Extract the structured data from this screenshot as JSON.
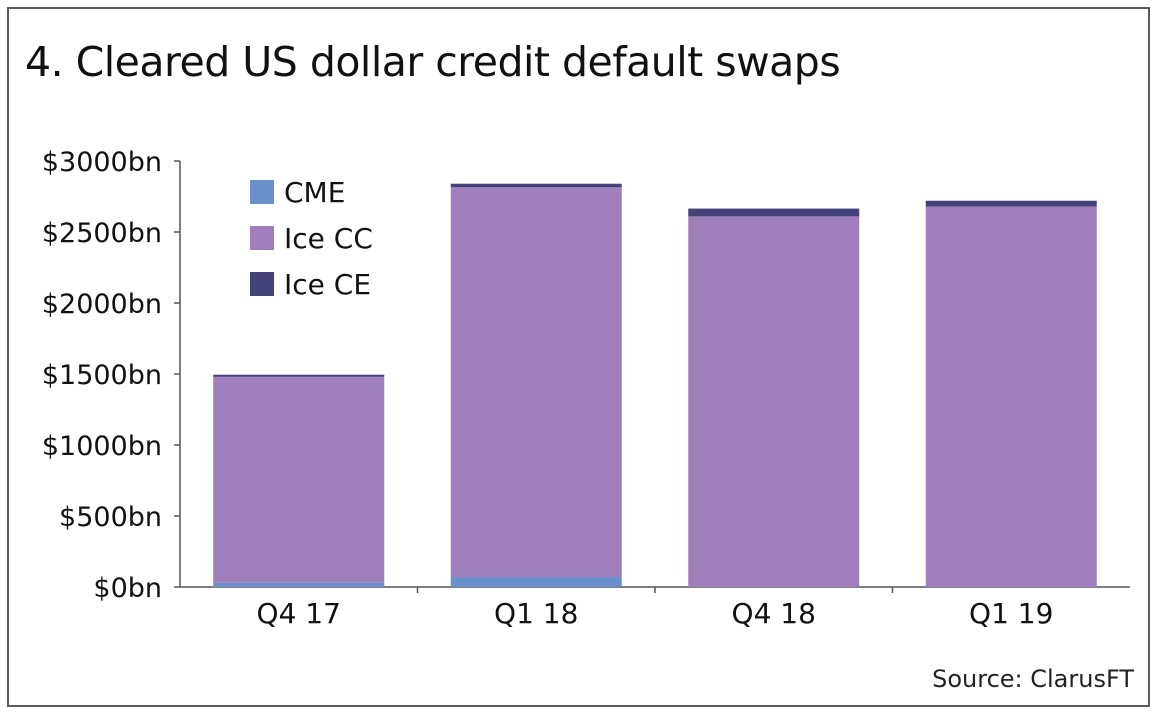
{
  "title": "4. Cleared US dollar credit default swaps",
  "source": "Source: ClarusFT",
  "chart_data": {
    "type": "bar",
    "stacked": true,
    "title": "4. Cleared US dollar credit default swaps",
    "xlabel": "",
    "ylabel": "",
    "categories": [
      "Q4 17",
      "Q1 18",
      "Q4 18",
      "Q1 19"
    ],
    "series": [
      {
        "name": "CME",
        "color": "#6b8fcc",
        "values": [
          30,
          70,
          0,
          0
        ]
      },
      {
        "name": "Ice CC",
        "color": "#9e7fbb",
        "values": [
          1450,
          2745,
          2610,
          2680
        ]
      },
      {
        "name": "Ice CE",
        "color": "#434379",
        "values": [
          15,
          25,
          55,
          40
        ]
      }
    ],
    "ylim": [
      0,
      3000
    ],
    "yticks": [
      0,
      500,
      1000,
      1500,
      2000,
      2500,
      3000
    ],
    "ytick_labels": [
      "$0bn",
      "$500bn",
      "$1000bn",
      "$1500bn",
      "$2000bn",
      "$2500bn",
      "$3000bn"
    ],
    "legend_position": "top-left",
    "grid": false
  }
}
